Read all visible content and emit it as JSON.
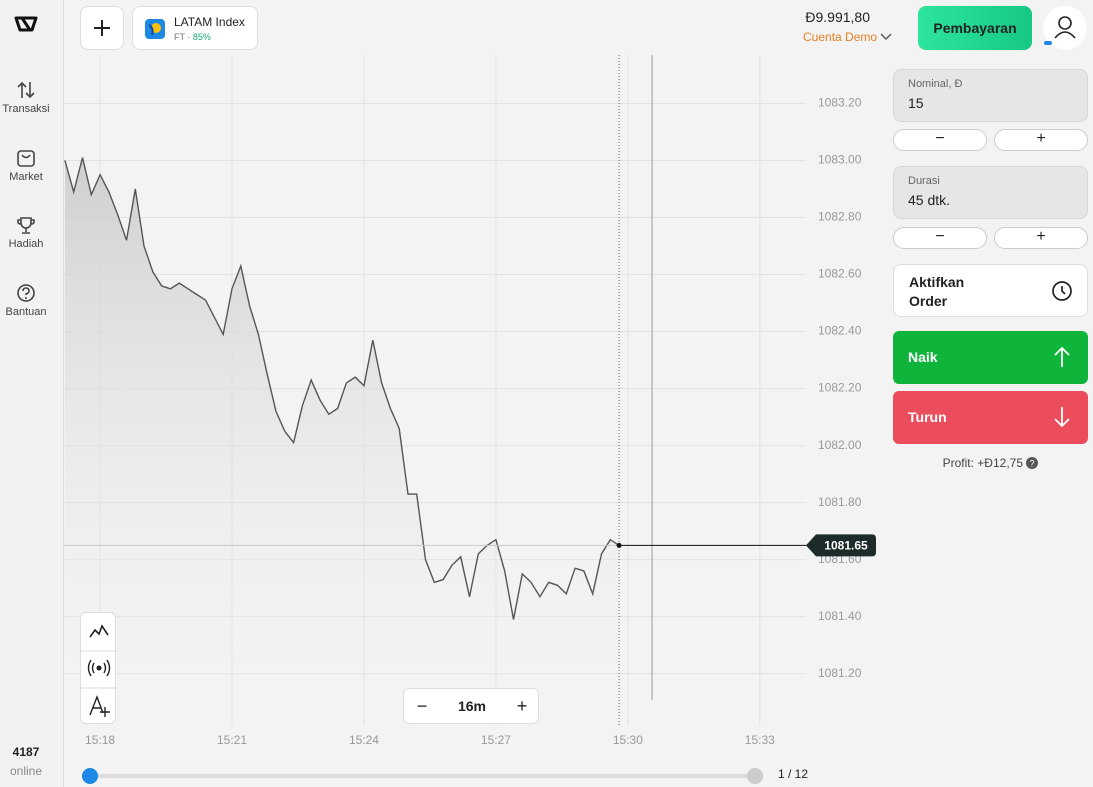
{
  "sidebar": {
    "items": [
      "Transaksi",
      "Market",
      "Hadiah",
      "Bantuan"
    ],
    "online_count": "4187",
    "online_label": "online"
  },
  "header": {
    "asset": "LATAM Index",
    "asset_type": "FT",
    "payout": "85%",
    "balance": "Đ9.991,80",
    "account": "Cuenta Demo",
    "payment_button": "Pembayaran"
  },
  "panel": {
    "amount_label": "Nominal, Đ",
    "amount": "15",
    "duration_label": "Durasi",
    "duration": "45 dtk.",
    "pending_order": "Aktifkan Order",
    "up": "Naik",
    "down": "Turun",
    "profit": "Profit: +Đ12,75"
  },
  "controls": {
    "zoom": "16m",
    "page": "1 / 12"
  },
  "chart_data": {
    "type": "line",
    "color": "#555555",
    "x": [
      917.2,
      917.4,
      917.6,
      917.8,
      918.0,
      918.2,
      918.4,
      918.6,
      918.8,
      919.0,
      919.2,
      919.4,
      919.6,
      919.8,
      920.0,
      920.2,
      920.4,
      920.6,
      920.8,
      921.0,
      921.2,
      921.4,
      921.6,
      921.8,
      922.0,
      922.2,
      922.4,
      922.6,
      922.8,
      923.0,
      923.2,
      923.4,
      923.6,
      923.8,
      924.0,
      924.2,
      924.4,
      924.6,
      924.8,
      925.0,
      925.2,
      925.4,
      925.6,
      925.8,
      926.0,
      926.2,
      926.4,
      926.6,
      926.8,
      927.0,
      927.2,
      927.4,
      927.6,
      927.8,
      928.0,
      928.2,
      928.4,
      928.6,
      928.8,
      929.0,
      929.2,
      929.4,
      929.6,
      929.8
    ],
    "values": [
      1083.0,
      1082.89,
      1083.01,
      1082.88,
      1082.95,
      1082.89,
      1082.81,
      1082.72,
      1082.9,
      1082.7,
      1082.61,
      1082.56,
      1082.55,
      1082.57,
      1082.55,
      1082.53,
      1082.51,
      1082.45,
      1082.39,
      1082.55,
      1082.63,
      1082.49,
      1082.39,
      1082.25,
      1082.12,
      1082.05,
      1082.01,
      1082.14,
      1082.23,
      1082.16,
      1082.11,
      1082.13,
      1082.22,
      1082.24,
      1082.21,
      1082.37,
      1082.22,
      1082.13,
      1082.06,
      1081.83,
      1081.83,
      1081.6,
      1081.52,
      1081.53,
      1081.58,
      1081.61,
      1081.47,
      1081.62,
      1081.65,
      1081.67,
      1081.56,
      1081.39,
      1081.55,
      1081.52,
      1081.47,
      1081.52,
      1081.51,
      1081.48,
      1081.57,
      1081.56,
      1081.48,
      1081.62,
      1081.67,
      1081.65
    ],
    "current_price": 1081.65,
    "xlim": [
      917.18,
      934.05
    ],
    "xticks": [
      {
        "value": 918,
        "label": "15:18"
      },
      {
        "value": 921,
        "label": "15:21"
      },
      {
        "value": 924,
        "label": "15:24"
      },
      {
        "value": 927,
        "label": "15:27"
      },
      {
        "value": 930,
        "label": "15:30"
      },
      {
        "value": 933,
        "label": "15:33"
      }
    ],
    "ylim": [
      1081.02,
      1083.37
    ],
    "yticks": [
      {
        "value": 1081.2,
        "label": "1081.20"
      },
      {
        "value": 1081.4,
        "label": "1081.40"
      },
      {
        "value": 1081.6,
        "label": "1081.60"
      },
      {
        "value": 1081.8,
        "label": "1081.80"
      },
      {
        "value": 1082.0,
        "label": "1082.00"
      },
      {
        "value": 1082.2,
        "label": "1082.20"
      },
      {
        "value": 1082.4,
        "label": "1082.40"
      },
      {
        "value": 1082.6,
        "label": "1082.60"
      },
      {
        "value": 1082.8,
        "label": "1082.80"
      },
      {
        "value": 1083.0,
        "label": "1083.00"
      },
      {
        "value": 1083.2,
        "label": "1083.20"
      }
    ],
    "grid": true
  }
}
